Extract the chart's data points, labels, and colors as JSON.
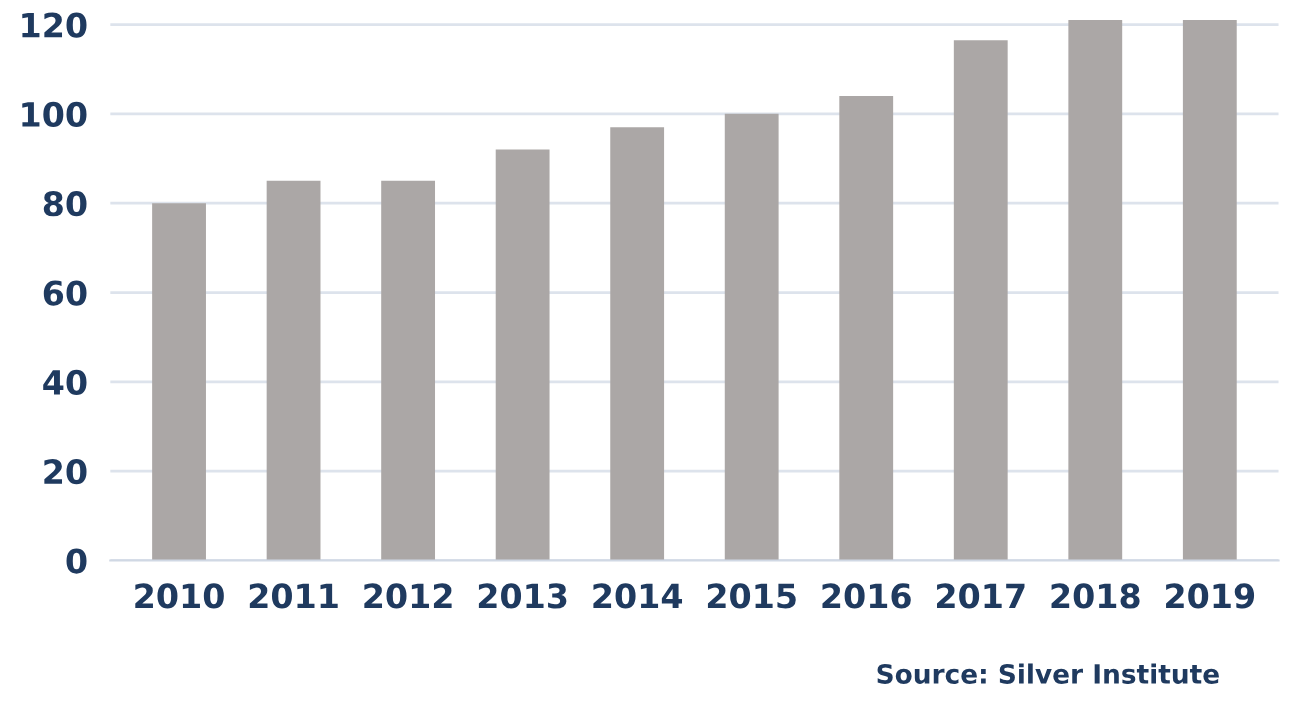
{
  "chart_data": {
    "type": "bar",
    "categories": [
      "2010",
      "2011",
      "2012",
      "2013",
      "2014",
      "2015",
      "2016",
      "2017",
      "2018",
      "2019"
    ],
    "values": [
      80,
      85,
      85,
      92,
      97,
      100,
      104,
      116.5,
      121,
      121
    ],
    "color": "#aba7a6",
    "ylim": [
      0,
      121.5
    ],
    "yticks": [
      0,
      20,
      40,
      60,
      80,
      100,
      120
    ],
    "grid": "y",
    "legend": false,
    "annotations": [
      "Source: Silver Institute"
    ]
  }
}
